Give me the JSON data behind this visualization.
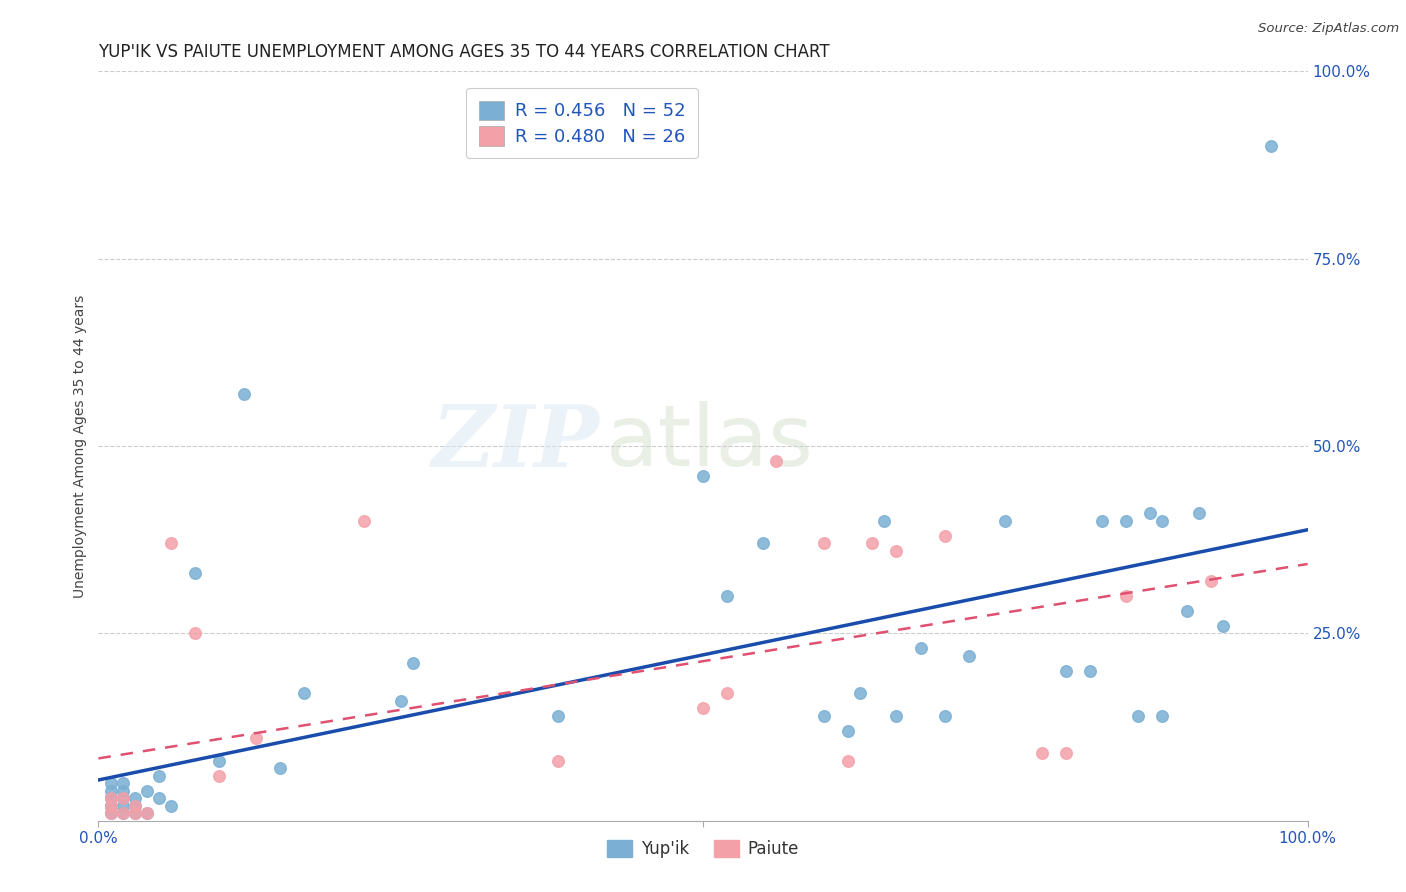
{
  "title": "YUP'IK VS PAIUTE UNEMPLOYMENT AMONG AGES 35 TO 44 YEARS CORRELATION CHART",
  "source": "Source: ZipAtlas.com",
  "ylabel": "Unemployment Among Ages 35 to 44 years",
  "yupik_R": 0.456,
  "yupik_N": 52,
  "paiute_R": 0.48,
  "paiute_N": 26,
  "yupik_color": "#7BAFD4",
  "paiute_color": "#F4A0A8",
  "trendline_yupik_color": "#1A4DAB",
  "trendline_paiute_color": "#E05070",
  "background_color": "#FFFFFF",
  "watermark_zip": "ZIP",
  "watermark_atlas": "atlas",
  "yupik_x": [
    0.01,
    0.01,
    0.01,
    0.01,
    0.01,
    0.01,
    0.01,
    0.02,
    0.02,
    0.02,
    0.02,
    0.02,
    0.03,
    0.03,
    0.03,
    0.04,
    0.04,
    0.05,
    0.05,
    0.06,
    0.08,
    0.1,
    0.12,
    0.15,
    0.17,
    0.25,
    0.26,
    0.38,
    0.5,
    0.52,
    0.55,
    0.6,
    0.62,
    0.63,
    0.65,
    0.66,
    0.68,
    0.7,
    0.72,
    0.75,
    0.8,
    0.82,
    0.83,
    0.85,
    0.86,
    0.87,
    0.88,
    0.88,
    0.9,
    0.91,
    0.93,
    0.97
  ],
  "yupik_y": [
    0.01,
    0.02,
    0.02,
    0.03,
    0.03,
    0.04,
    0.05,
    0.01,
    0.02,
    0.03,
    0.04,
    0.05,
    0.01,
    0.02,
    0.03,
    0.01,
    0.04,
    0.03,
    0.06,
    0.02,
    0.33,
    0.08,
    0.57,
    0.07,
    0.17,
    0.16,
    0.21,
    0.14,
    0.46,
    0.3,
    0.37,
    0.14,
    0.12,
    0.17,
    0.4,
    0.14,
    0.23,
    0.14,
    0.22,
    0.4,
    0.2,
    0.2,
    0.4,
    0.4,
    0.14,
    0.41,
    0.4,
    0.14,
    0.28,
    0.41,
    0.26,
    0.9
  ],
  "paiute_x": [
    0.01,
    0.01,
    0.01,
    0.02,
    0.02,
    0.03,
    0.03,
    0.04,
    0.06,
    0.08,
    0.1,
    0.13,
    0.22,
    0.38,
    0.5,
    0.52,
    0.56,
    0.6,
    0.62,
    0.64,
    0.66,
    0.7,
    0.78,
    0.8,
    0.85,
    0.92
  ],
  "paiute_y": [
    0.01,
    0.02,
    0.03,
    0.01,
    0.03,
    0.01,
    0.02,
    0.01,
    0.37,
    0.25,
    0.06,
    0.11,
    0.4,
    0.08,
    0.15,
    0.17,
    0.48,
    0.37,
    0.08,
    0.37,
    0.36,
    0.38,
    0.09,
    0.09,
    0.3,
    0.32
  ],
  "xlim": [
    0.0,
    1.0
  ],
  "ylim": [
    0.0,
    1.0
  ],
  "xtick_positions": [
    0.0,
    0.5,
    1.0
  ],
  "xtick_labels": [
    "0.0%",
    "",
    "100.0%"
  ],
  "ytick_values": [
    0.25,
    0.5,
    0.75,
    1.0
  ],
  "ytick_labels": [
    "25.0%",
    "50.0%",
    "75.0%",
    "100.0%"
  ],
  "grid_color": "#CCCCCC",
  "title_fontsize": 12,
  "axis_label_fontsize": 10,
  "tick_fontsize": 11,
  "legend_label1": "R = 0.456   N = 52",
  "legend_label2": "R = 0.480   N = 26",
  "bottom_legend_yupik": "Yup'ik",
  "bottom_legend_paiute": "Paiute"
}
